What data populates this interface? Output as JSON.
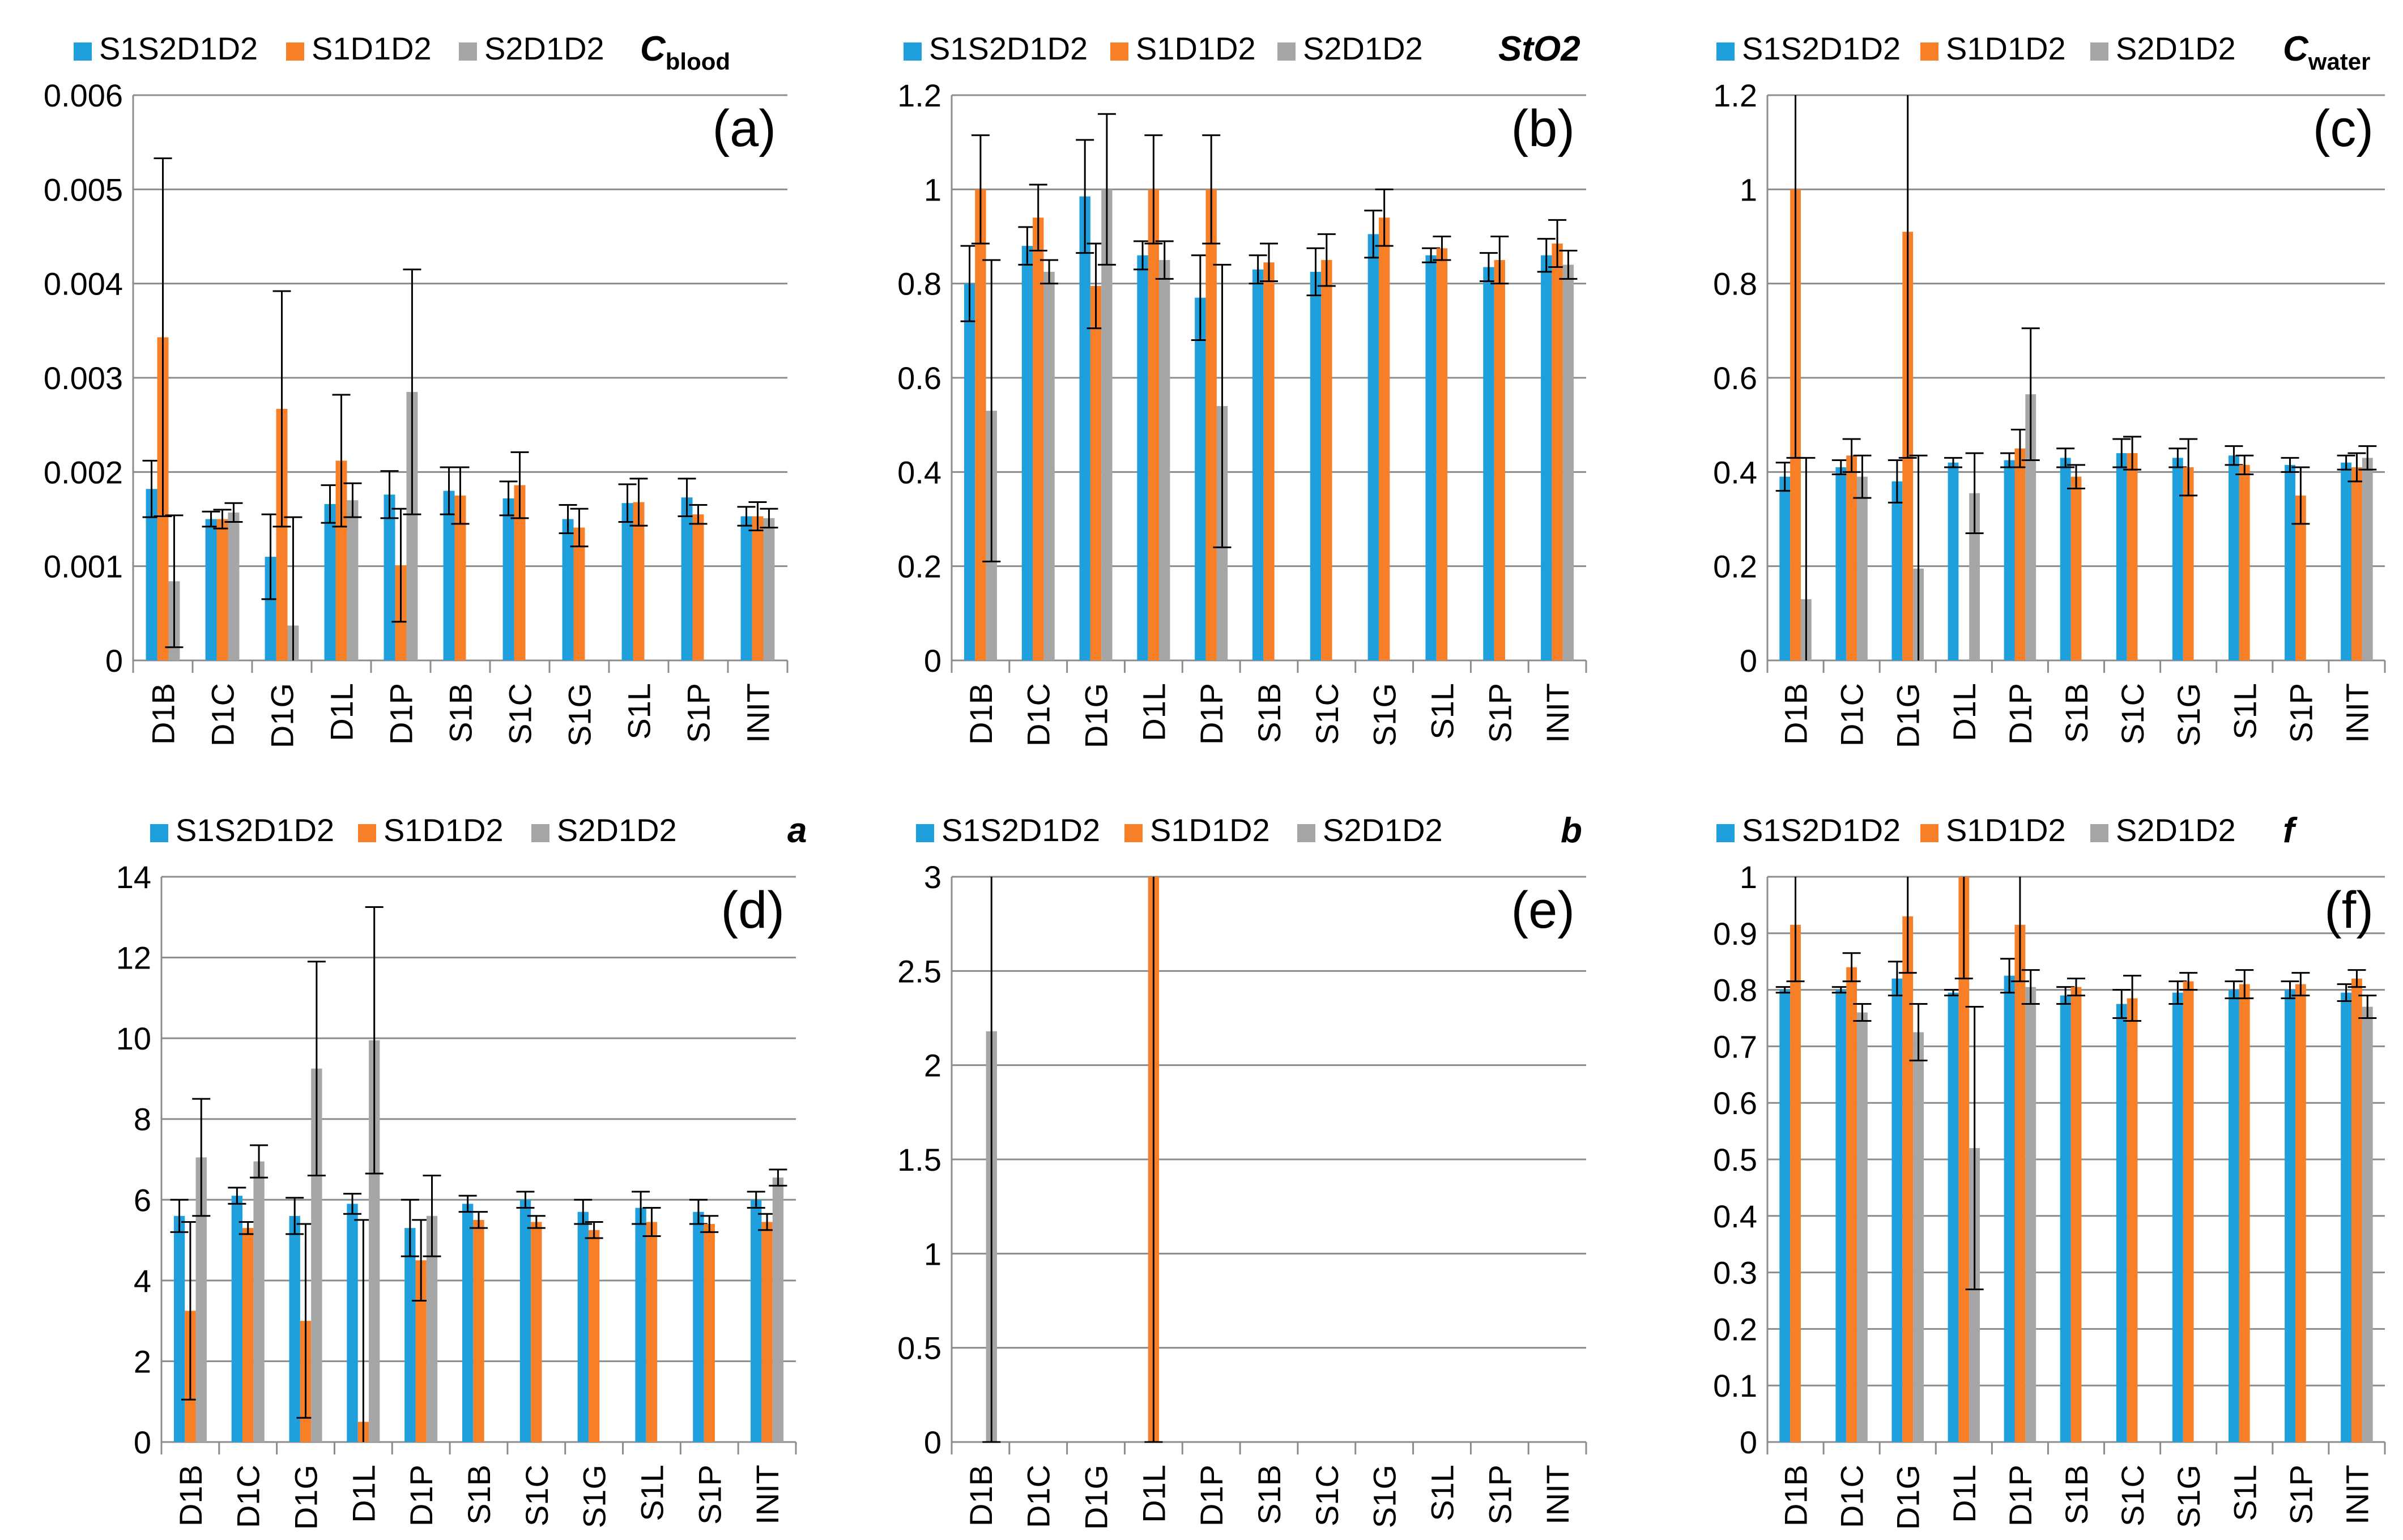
{
  "colors": {
    "S1S2D1D2": "#1f9fdb",
    "S1D1D2": "#f67f27",
    "S2D1D2": "#a6a6a6",
    "grid": "#8c8c8c",
    "error_bar": "#000000"
  },
  "chart_data": [
    {
      "type": "bar",
      "panel_label": "(a)",
      "param_label": "C",
      "param_sub": "blood",
      "categories": [
        "D1B",
        "D1C",
        "D1G",
        "D1L",
        "D1P",
        "S1B",
        "S1C",
        "S1G",
        "S1L",
        "S1P",
        "INIT"
      ],
      "ylim": [
        0,
        0.006
      ],
      "yticks": [
        0,
        0.001,
        0.002,
        0.003,
        0.004,
        0.005,
        0.006
      ],
      "ytick_labels": [
        "0",
        "0.001",
        "0.002",
        "0.003",
        "0.004",
        "0.005",
        "0.006"
      ],
      "legend": [
        "S1S2D1D2",
        "S1D1D2",
        "S2D1D2"
      ],
      "legend_placement": "top",
      "grid": true,
      "series": [
        {
          "name": "S1S2D1D2",
          "values": [
            0.00182,
            0.0015,
            0.0011,
            0.00166,
            0.00176,
            0.0018,
            0.00172,
            0.0015,
            0.00167,
            0.00173,
            0.00153
          ],
          "errors": [
            0.0003,
            8e-05,
            0.00045,
            0.0002,
            0.00025,
            0.00025,
            0.00018,
            0.00015,
            0.0002,
            0.0002,
            0.0001
          ]
        },
        {
          "name": "S1D1D2",
          "values": [
            0.00343,
            0.0015,
            0.00267,
            0.00212,
            0.00101,
            0.00175,
            0.00186,
            0.00141,
            0.00168,
            0.00155,
            0.00153
          ],
          "errors": [
            0.0019,
            0.0001,
            0.00125,
            0.0007,
            0.0006,
            0.0003,
            0.00035,
            0.0002,
            0.00025,
            0.0001,
            0.00015
          ]
        },
        {
          "name": "S2D1D2",
          "values": [
            0.00084,
            0.00157,
            0.00037,
            0.0017,
            0.00285,
            null,
            null,
            null,
            null,
            null,
            0.00151
          ],
          "errors": [
            0.0007,
            0.0001,
            0.00115,
            0.00018,
            0.0013,
            null,
            null,
            null,
            null,
            null,
            0.0001
          ]
        }
      ]
    },
    {
      "type": "bar",
      "panel_label": "(b)",
      "param_label": "StO2",
      "param_sub": "",
      "categories": [
        "D1B",
        "D1C",
        "D1G",
        "D1L",
        "D1P",
        "S1B",
        "S1C",
        "S1G",
        "S1L",
        "S1P",
        "INIT"
      ],
      "ylim": [
        0,
        1.2
      ],
      "yticks": [
        0,
        0.2,
        0.4,
        0.6,
        0.8,
        1,
        1.2
      ],
      "ytick_labels": [
        "0",
        "0.2",
        "0.4",
        "0.6",
        "0.8",
        "1",
        "1.2"
      ],
      "legend": [
        "S1S2D1D2",
        "S1D1D2",
        "S2D1D2"
      ],
      "legend_placement": "top",
      "grid": true,
      "series": [
        {
          "name": "S1S2D1D2",
          "values": [
            0.8,
            0.88,
            0.985,
            0.86,
            0.77,
            0.83,
            0.825,
            0.905,
            0.86,
            0.835,
            0.86
          ],
          "errors": [
            0.08,
            0.04,
            0.12,
            0.03,
            0.09,
            0.03,
            0.05,
            0.05,
            0.015,
            0.03,
            0.035
          ]
        },
        {
          "name": "S1D1D2",
          "values": [
            1.0,
            0.94,
            0.795,
            1.0,
            1.0,
            0.845,
            0.85,
            0.94,
            0.875,
            0.85,
            0.885
          ],
          "errors": [
            0.115,
            0.07,
            0.09,
            0.115,
            0.115,
            0.04,
            0.055,
            0.06,
            0.025,
            0.05,
            0.05
          ]
        },
        {
          "name": "S2D1D2",
          "values": [
            0.53,
            0.825,
            1.0,
            0.85,
            0.54,
            null,
            null,
            null,
            null,
            null,
            0.84
          ],
          "errors": [
            0.32,
            0.025,
            0.16,
            0.04,
            0.3,
            null,
            null,
            null,
            null,
            null,
            0.03
          ]
        }
      ]
    },
    {
      "type": "bar",
      "panel_label": "(c)",
      "param_label": "C",
      "param_sub": "water",
      "categories": [
        "D1B",
        "D1C",
        "D1G",
        "D1L",
        "D1P",
        "S1B",
        "S1C",
        "S1G",
        "S1L",
        "S1P",
        "INIT"
      ],
      "ylim": [
        0,
        1.2
      ],
      "yticks": [
        0,
        0.2,
        0.4,
        0.6,
        0.8,
        1,
        1.2
      ],
      "ytick_labels": [
        "0",
        "0.2",
        "0.4",
        "0.6",
        "0.8",
        "1",
        "1.2"
      ],
      "legend": [
        "S1S2D1D2",
        "S1D1D2",
        "S2D1D2"
      ],
      "legend_placement": "top",
      "grid": true,
      "series": [
        {
          "name": "S1S2D1D2",
          "values": [
            0.39,
            0.41,
            0.38,
            0.42,
            0.425,
            0.43,
            0.44,
            0.43,
            0.435,
            0.415,
            0.42
          ],
          "errors": [
            0.03,
            0.015,
            0.045,
            0.01,
            0.015,
            0.02,
            0.03,
            0.02,
            0.02,
            0.015,
            0.015
          ]
        },
        {
          "name": "S1D1D2",
          "values": [
            1.0,
            0.435,
            0.91,
            null,
            0.45,
            0.39,
            0.44,
            0.41,
            0.415,
            0.35,
            0.41
          ],
          "errors": [
            0.57,
            0.035,
            0.48,
            null,
            0.04,
            0.025,
            0.035,
            0.06,
            0.02,
            0.06,
            0.03
          ]
        },
        {
          "name": "S2D1D2",
          "values": [
            0.13,
            0.39,
            0.195,
            0.355,
            0.565,
            null,
            null,
            null,
            null,
            null,
            0.43
          ],
          "errors": [
            0.3,
            0.045,
            0.24,
            0.085,
            0.14,
            null,
            null,
            null,
            null,
            null,
            0.025
          ]
        }
      ]
    },
    {
      "type": "bar",
      "panel_label": "(d)",
      "param_label": "a",
      "param_sub": "",
      "categories": [
        "D1B",
        "D1C",
        "D1G",
        "D1L",
        "D1P",
        "S1B",
        "S1C",
        "S1G",
        "S1L",
        "S1P",
        "INIT"
      ],
      "ylim": [
        0,
        14
      ],
      "yticks": [
        0,
        2,
        4,
        6,
        8,
        10,
        12,
        14
      ],
      "ytick_labels": [
        "0",
        "2",
        "4",
        "6",
        "8",
        "10",
        "12",
        "14"
      ],
      "legend": [
        "S1S2D1D2",
        "S1D1D2",
        "S2D1D2"
      ],
      "legend_placement": "top",
      "grid": true,
      "series": [
        {
          "name": "S1S2D1D2",
          "values": [
            5.6,
            6.1,
            5.6,
            5.9,
            5.3,
            5.9,
            6.0,
            5.7,
            5.8,
            5.7,
            6.0
          ],
          "errors": [
            0.4,
            0.2,
            0.45,
            0.25,
            0.7,
            0.2,
            0.2,
            0.3,
            0.4,
            0.3,
            0.2
          ]
        },
        {
          "name": "S1D1D2",
          "values": [
            3.25,
            5.3,
            3.0,
            0.5,
            4.5,
            5.5,
            5.45,
            5.25,
            5.45,
            5.4,
            5.45
          ],
          "errors": [
            2.2,
            0.15,
            2.4,
            5.0,
            1.0,
            0.2,
            0.15,
            0.2,
            0.35,
            0.2,
            0.2
          ]
        },
        {
          "name": "S2D1D2",
          "values": [
            7.05,
            6.95,
            9.25,
            9.95,
            5.6,
            null,
            null,
            null,
            null,
            null,
            6.55
          ],
          "errors": [
            1.45,
            0.4,
            2.65,
            3.3,
            1.0,
            null,
            null,
            null,
            null,
            null,
            0.2
          ]
        }
      ]
    },
    {
      "type": "bar",
      "panel_label": "(e)",
      "param_label": "b",
      "param_sub": "",
      "categories": [
        "D1B",
        "D1C",
        "D1G",
        "D1L",
        "D1P",
        "S1B",
        "S1C",
        "S1G",
        "S1L",
        "S1P",
        "INIT"
      ],
      "ylim": [
        0,
        3
      ],
      "yticks": [
        0,
        0.5,
        1,
        1.5,
        2,
        2.5,
        3
      ],
      "ytick_labels": [
        "0",
        "0.5",
        "1",
        "1.5",
        "2",
        "2.5",
        "3"
      ],
      "legend": [
        "S1S2D1D2",
        "S1D1D2",
        "S2D1D2"
      ],
      "legend_placement": "top",
      "grid": true,
      "series": [
        {
          "name": "S1S2D1D2",
          "values": [
            null,
            null,
            null,
            null,
            null,
            null,
            null,
            null,
            null,
            null,
            null
          ],
          "errors": [
            null,
            null,
            null,
            null,
            null,
            null,
            null,
            null,
            null,
            null,
            null
          ]
        },
        {
          "name": "S1D1D2",
          "values": [
            null,
            null,
            null,
            3.0,
            null,
            null,
            null,
            null,
            null,
            null,
            null
          ],
          "errors": [
            null,
            null,
            null,
            3.0,
            null,
            null,
            null,
            null,
            null,
            null,
            null
          ]
        },
        {
          "name": "S2D1D2",
          "values": [
            2.18,
            null,
            null,
            null,
            null,
            null,
            null,
            null,
            null,
            null,
            null
          ],
          "errors": [
            2.18,
            null,
            null,
            null,
            null,
            null,
            null,
            null,
            null,
            null,
            null
          ]
        }
      ]
    },
    {
      "type": "bar",
      "panel_label": "(f)",
      "param_label": "f",
      "param_sub": "",
      "categories": [
        "D1B",
        "D1C",
        "D1G",
        "D1L",
        "D1P",
        "S1B",
        "S1C",
        "S1G",
        "S1L",
        "S1P",
        "INIT"
      ],
      "ylim": [
        0,
        1
      ],
      "yticks": [
        0,
        0.1,
        0.2,
        0.3,
        0.4,
        0.5,
        0.6,
        0.7,
        0.8,
        0.9,
        1
      ],
      "ytick_labels": [
        "0",
        "0.1",
        "0.2",
        "0.3",
        "0.4",
        "0.5",
        "0.6",
        "0.7",
        "0.8",
        "0.9",
        "1"
      ],
      "legend": [
        "S1S2D1D2",
        "S1D1D2",
        "S2D1D2"
      ],
      "legend_placement": "top",
      "grid": true,
      "series": [
        {
          "name": "S1S2D1D2",
          "values": [
            0.8,
            0.8,
            0.82,
            0.795,
            0.825,
            0.79,
            0.775,
            0.795,
            0.8,
            0.8,
            0.795
          ],
          "errors": [
            0.005,
            0.005,
            0.03,
            0.005,
            0.03,
            0.015,
            0.025,
            0.02,
            0.015,
            0.015,
            0.015
          ]
        },
        {
          "name": "S1D1D2",
          "values": [
            0.915,
            0.84,
            0.93,
            1.0,
            0.915,
            0.805,
            0.785,
            0.815,
            0.81,
            0.81,
            0.82
          ],
          "errors": [
            0.1,
            0.025,
            0.1,
            0.18,
            0.1,
            0.015,
            0.04,
            0.015,
            0.025,
            0.02,
            0.015
          ]
        },
        {
          "name": "S2D1D2",
          "values": [
            null,
            0.76,
            0.725,
            0.52,
            0.805,
            null,
            null,
            null,
            null,
            null,
            0.77
          ],
          "errors": [
            null,
            0.015,
            0.05,
            0.25,
            0.03,
            null,
            null,
            null,
            null,
            null,
            0.02
          ]
        }
      ]
    }
  ]
}
